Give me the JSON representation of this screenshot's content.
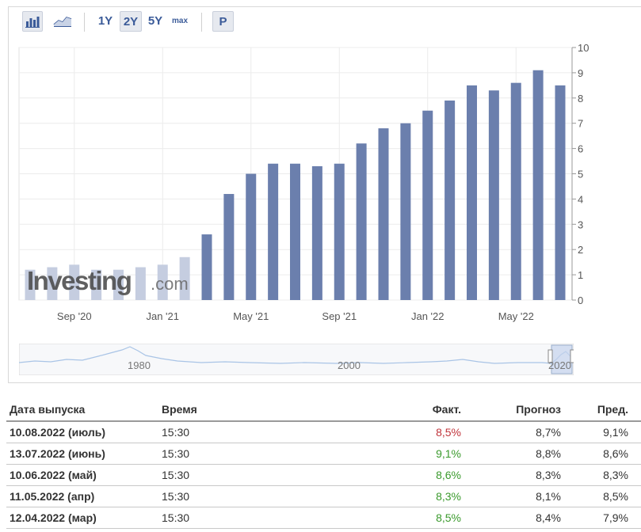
{
  "toolbar": {
    "bar_icon": "bar-chart-icon",
    "line_icon": "line-chart-icon",
    "ranges": [
      "1Y",
      "2Y",
      "5Y",
      "max"
    ],
    "active_range": "2Y",
    "p_label": "P"
  },
  "watermark": {
    "brand": "Investing",
    "suffix": ".com"
  },
  "navigator": {
    "labels": [
      "1980",
      "2000",
      "2020"
    ]
  },
  "colors": {
    "bar": "#6b7fad",
    "bar_faded": "#c5cde0",
    "grid": "#ececec",
    "nav_line": "#a9c4e6",
    "red": "#c0343b",
    "green": "#3a9a2c"
  },
  "chart_data": {
    "type": "bar",
    "x_tick_labels": [
      "Sep '20",
      "Jan '21",
      "May '21",
      "Sep '21",
      "Jan '22",
      "May '22"
    ],
    "categories": [
      "2020-07",
      "2020-08",
      "2020-09",
      "2020-10",
      "2020-11",
      "2020-12",
      "2021-01",
      "2021-02",
      "2021-03",
      "2021-04",
      "2021-05",
      "2021-06",
      "2021-07",
      "2021-08",
      "2021-09",
      "2021-10",
      "2021-11",
      "2021-12",
      "2022-01",
      "2022-02",
      "2022-03",
      "2022-04",
      "2022-05",
      "2022-06",
      "2022-07"
    ],
    "values": [
      1.2,
      1.3,
      1.4,
      1.2,
      1.2,
      1.3,
      1.4,
      1.7,
      2.6,
      4.2,
      5.0,
      5.4,
      5.4,
      5.3,
      5.4,
      6.2,
      6.8,
      7.0,
      7.5,
      7.9,
      8.5,
      8.3,
      8.6,
      9.1,
      8.5
    ],
    "y_ticks": [
      0,
      1,
      2,
      3,
      4,
      5,
      6,
      7,
      8,
      9,
      10
    ],
    "ylim": [
      0,
      10
    ],
    "grid": true,
    "y_axis_side": "right"
  },
  "table": {
    "headers": [
      "Дата выпуска",
      "Время",
      "Факт.",
      "Прогноз",
      "Пред."
    ],
    "rows": [
      {
        "date": "10.08.2022 (июль)",
        "time": "15:30",
        "actual": "8,5%",
        "actual_color": "red",
        "forecast": "8,7%",
        "previous": "9,1%"
      },
      {
        "date": "13.07.2022 (июнь)",
        "time": "15:30",
        "actual": "9,1%",
        "actual_color": "green",
        "forecast": "8,8%",
        "previous": "8,6%"
      },
      {
        "date": "10.06.2022 (май)",
        "time": "15:30",
        "actual": "8,6%",
        "actual_color": "green",
        "forecast": "8,3%",
        "previous": "8,3%"
      },
      {
        "date": "11.05.2022 (апр)",
        "time": "15:30",
        "actual": "8,3%",
        "actual_color": "green",
        "forecast": "8,1%",
        "previous": "8,5%"
      },
      {
        "date": "12.04.2022 (мар)",
        "time": "15:30",
        "actual": "8,5%",
        "actual_color": "green",
        "forecast": "8,4%",
        "previous": "7,9%"
      }
    ]
  }
}
